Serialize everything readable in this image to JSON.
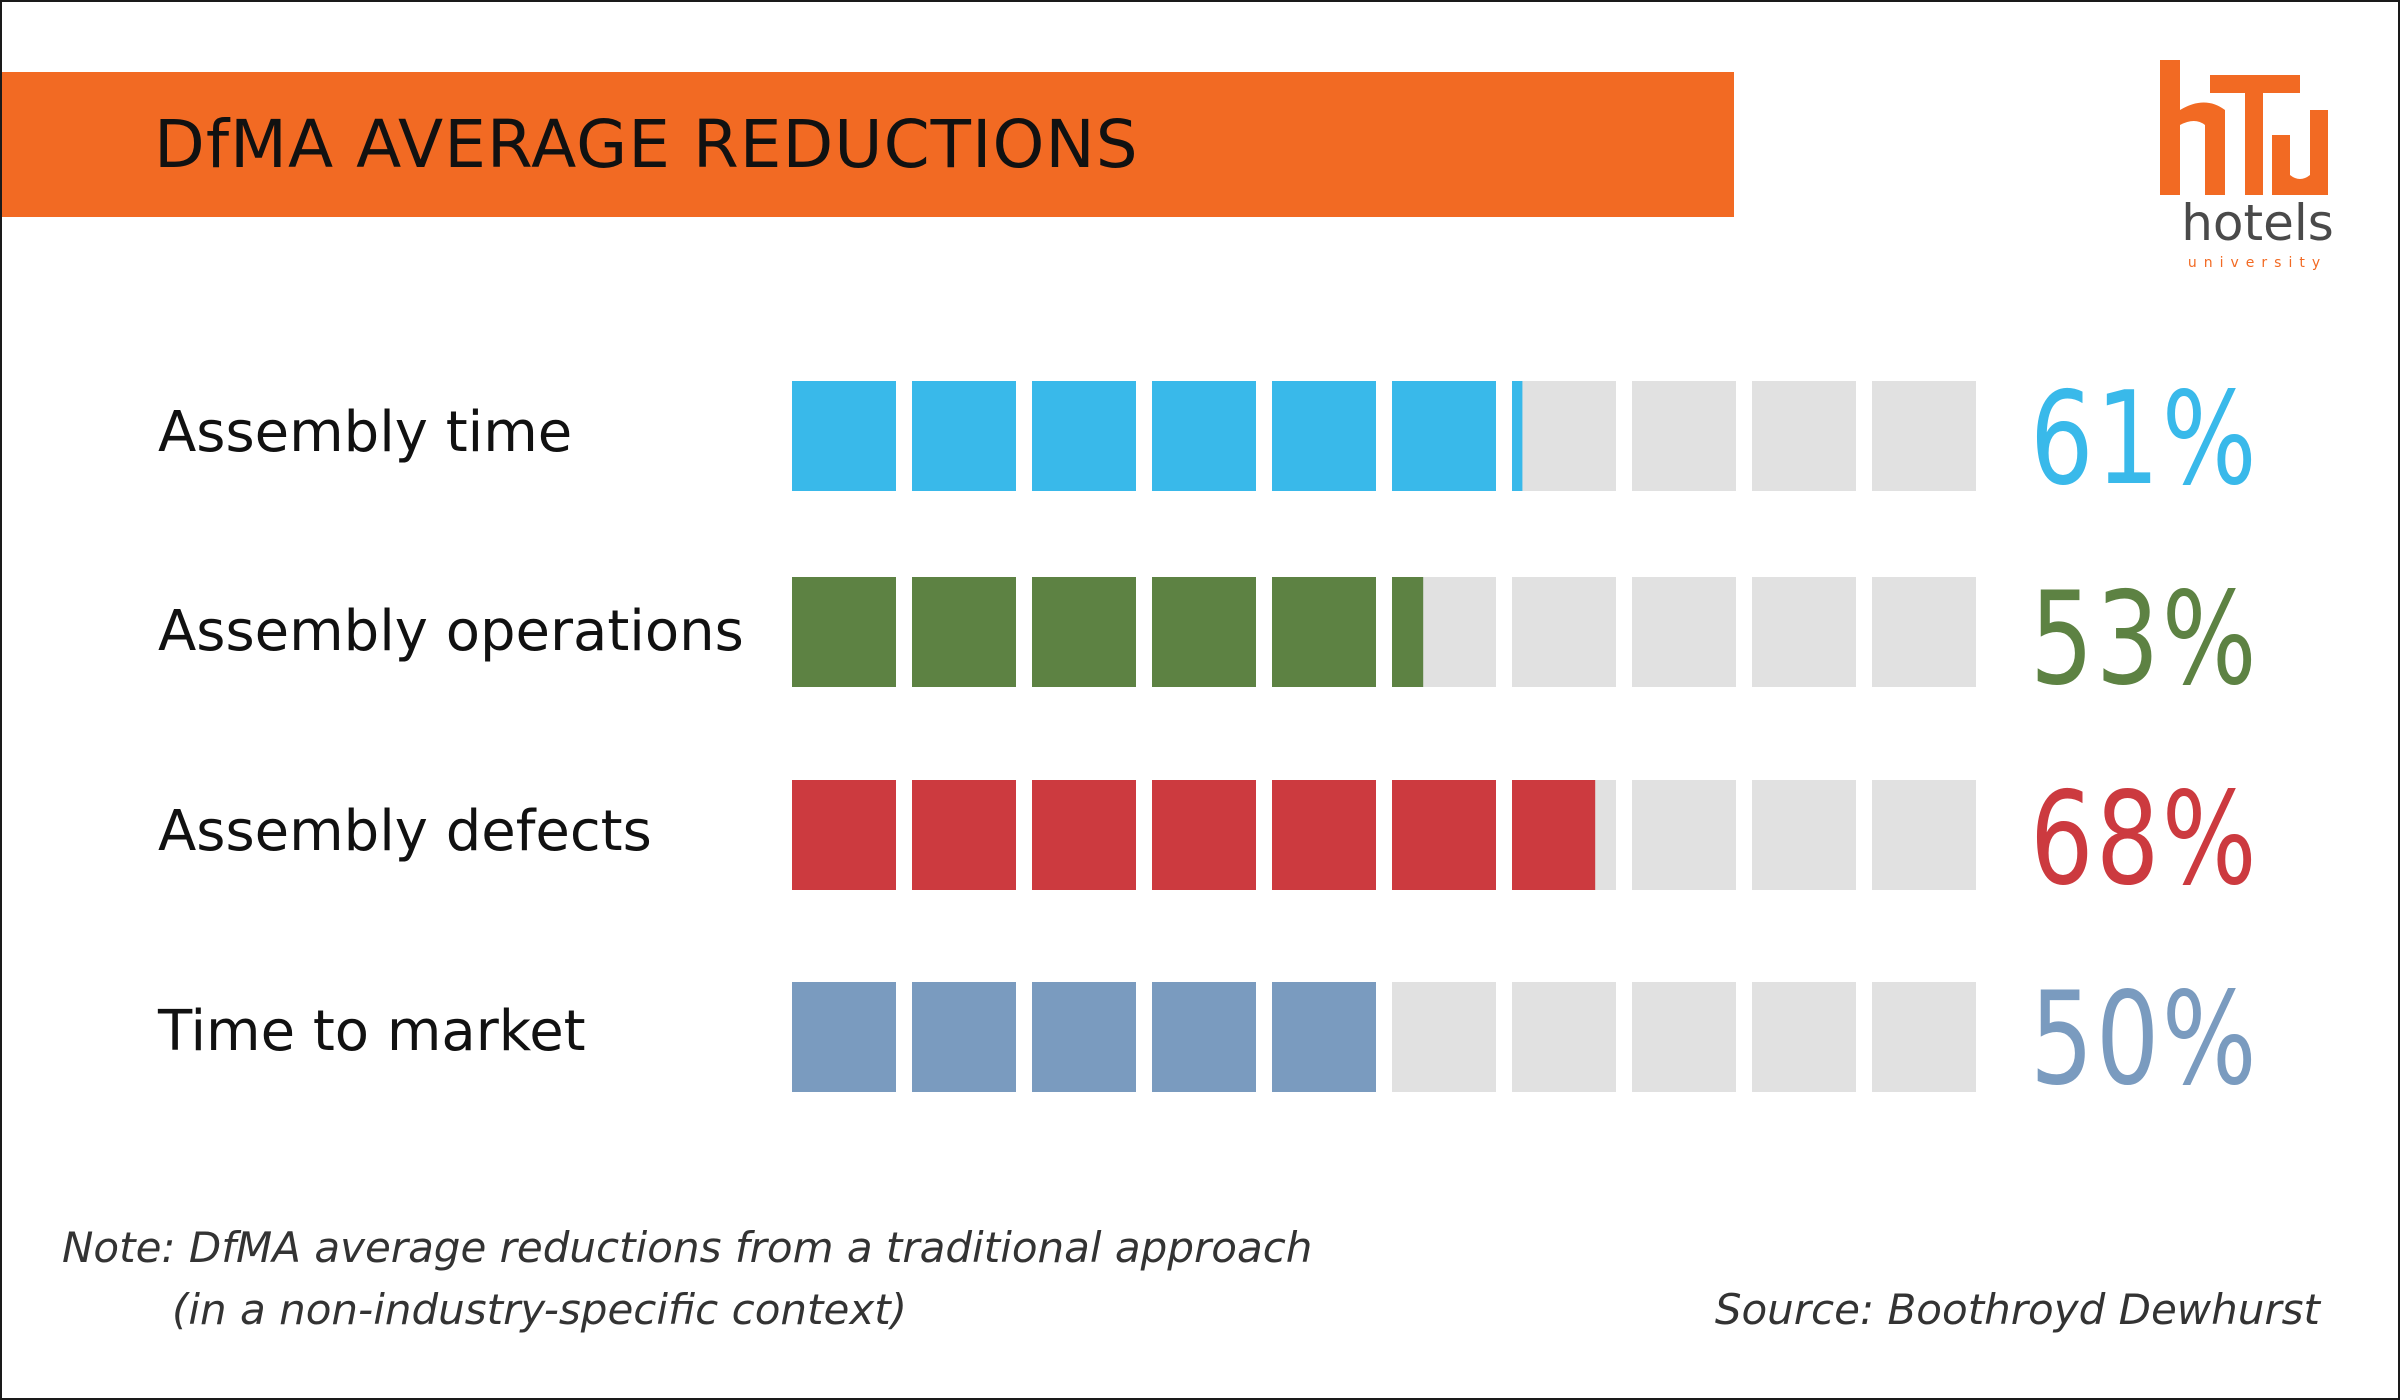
{
  "title": "DfMA AVERAGE REDUCTIONS",
  "logo": {
    "word": "hotels",
    "sub": "university",
    "accent_color": "#f26a23"
  },
  "note_line1": "Note: DfMA average reductions from a traditional approach",
  "note_line2": "(in a non-industry-specific context)",
  "source": "Source: Boothroyd Dewhurst",
  "chart_data": {
    "type": "bar",
    "orientation": "horizontal",
    "categories": [
      "Assembly time",
      "Assembly operations",
      "Assembly defects",
      "Time to market"
    ],
    "values": [
      61,
      53,
      68,
      50
    ],
    "value_labels": [
      "61%",
      "53%",
      "68%",
      "50%"
    ],
    "colors": [
      "#39b9ea",
      "#5d8243",
      "#cc3a3f",
      "#7a9bbf"
    ],
    "empty_color": "#e1e1e1",
    "segments": 10,
    "xlim": [
      0,
      100
    ]
  }
}
